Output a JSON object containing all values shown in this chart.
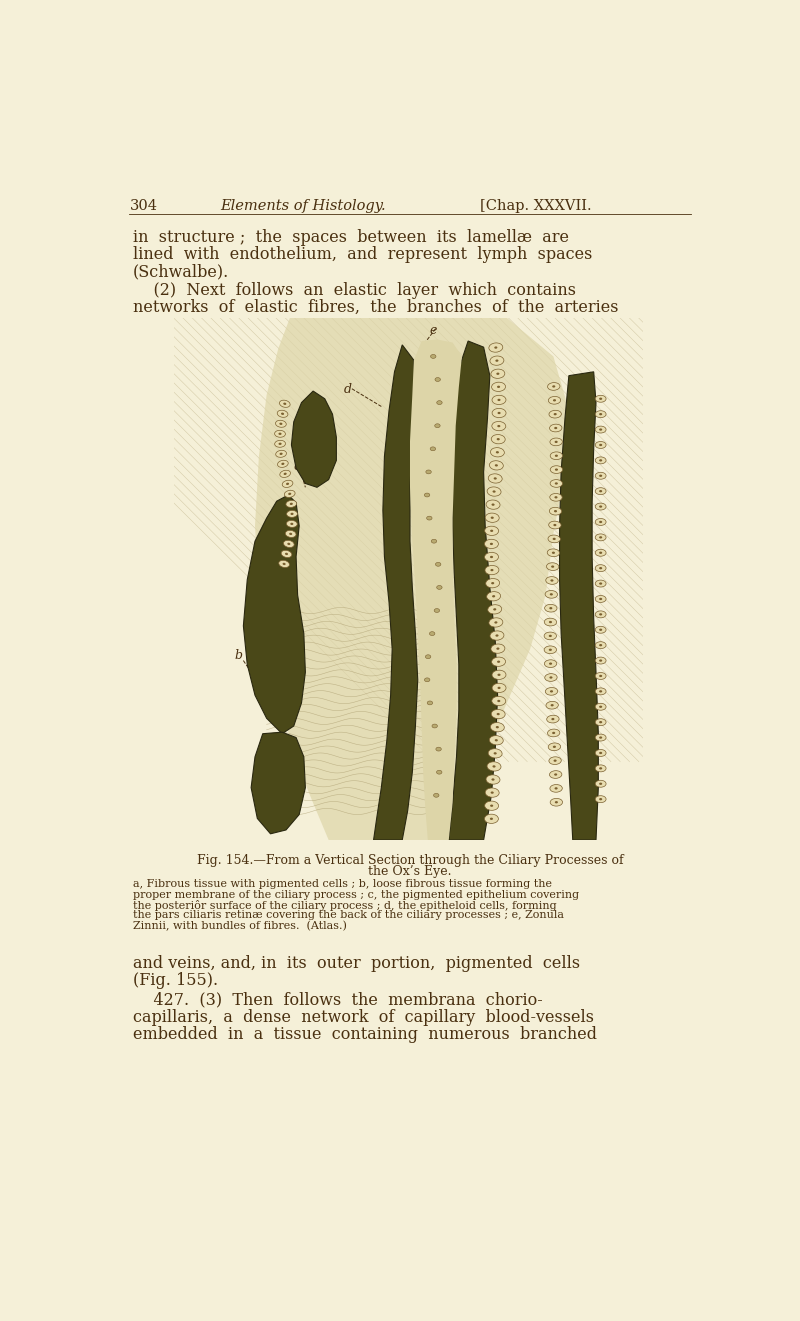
{
  "bg_color": "#f5f0d8",
  "text_color": "#4a3010",
  "page_width": 8.0,
  "page_height": 13.21,
  "dpi": 100,
  "fig_caption_title": "Fig. 154.—From a Vertical Section through the Ciliary Processes of",
  "fig_caption_title2": "the Ox’s Eye.",
  "fig_caption_body": "a, Fibrous tissue with pigmented cells ; b, loose fibrous tissue forming the\nproper membrane of the ciliary process ; c, the pigmented epithelium covering\nthe posteriôr surface of the ciliary process ; d, the epitheloid cells, forming\nthe pars ciliaris retinæ covering the back of the ciliary processes ; e, Zonula\nZinnii, with bundles of fibres.  (Atlas.)",
  "header_304": "304",
  "header_elements": "Elements of Histology.",
  "header_chap": "[Chap. XXXVII.",
  "line_p1_1": "in  structure ;  the  spaces  between  its  lamellæ  are",
  "line_p1_2": "lined  with  endothelium,  and  represent  lymph  spaces",
  "line_p1_3": "(Schwalbe).",
  "line_p2_1": "    (2)  Next  follows  an  elastic  layer  which  contains",
  "line_p2_2": "networks  of  elastic  fibres,  the  branches  of  the  arteries",
  "line_p3_1": "and veins, and, in  its  outer  portion,  pigmented  cells",
  "line_p3_2": "(Fig. 155).",
  "line_p4_1": "    427.  (3)  Then  follows  the  membrana  chorio-",
  "line_p4_2": "capillaris,  a  dense  network  of  capillary  blood-vessels",
  "line_p4_3": "embedded  in  a  tissue  containing  numerous  branched",
  "fibrous_color": "#c8b87a",
  "dark_color": "#4a4818",
  "cell_face": "#e8ddb0",
  "cell_edge": "#7a6030",
  "hatch_color": "#a09060",
  "wavy_color": "#a09060"
}
